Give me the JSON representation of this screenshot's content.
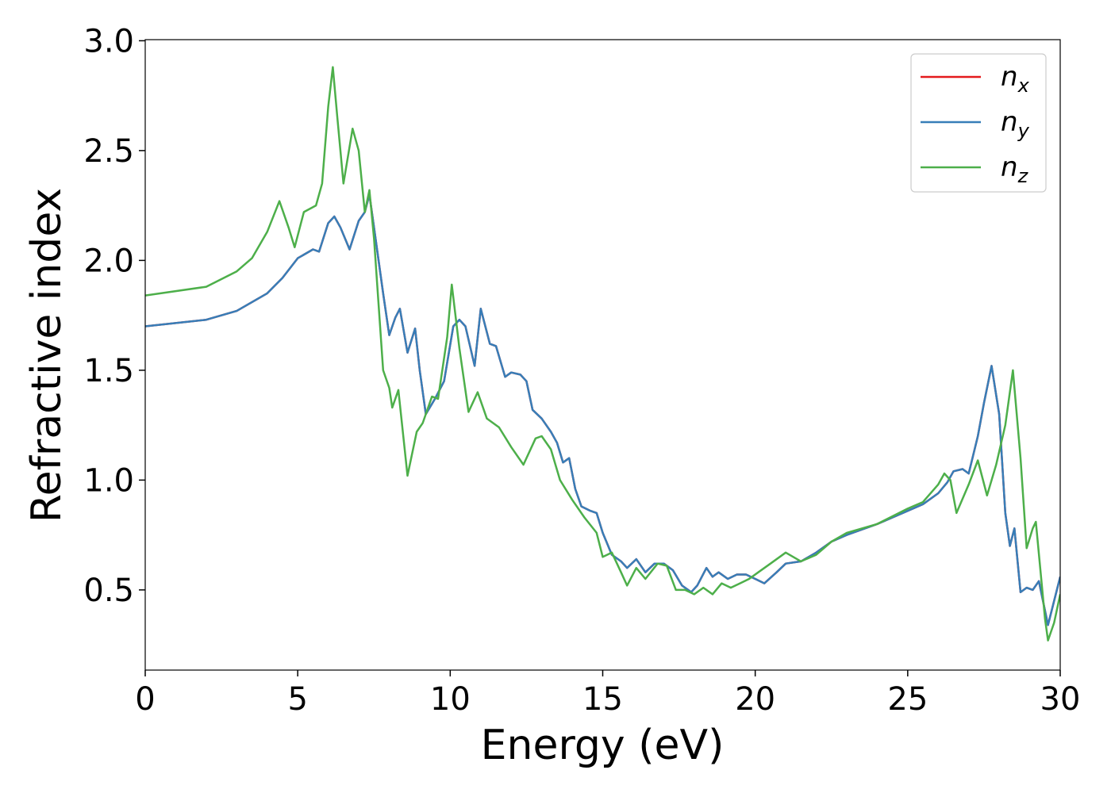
{
  "chart_data": {
    "type": "line",
    "xlabel": "Energy (eV)",
    "ylabel": "Refractive index",
    "xlim": [
      0,
      30
    ],
    "ylim": [
      0.135,
      3.005
    ],
    "xticks": [
      0,
      5,
      10,
      15,
      20,
      25,
      30
    ],
    "yticks": [
      0.5,
      {
        "value": 1.0,
        "label": "1.0"
      },
      1.5,
      {
        "value": 2.0,
        "label": "2.0"
      },
      2.5,
      {
        "value": 3.0,
        "label": "3.0"
      }
    ],
    "legend": "upper right",
    "series": [
      {
        "name": "nx",
        "color": "#e41a1c",
        "x": [
          0,
          2,
          3,
          4,
          4.5,
          5,
          5.5,
          5.7,
          6,
          6.2,
          6.4,
          6.7,
          7,
          7.2,
          7.35,
          7.5,
          7.8,
          8,
          8.2,
          8.35,
          8.6,
          8.85,
          9,
          9.2,
          9.5,
          9.8,
          10.1,
          10.3,
          10.5,
          10.8,
          11,
          11.3,
          11.5,
          11.8,
          12,
          12.3,
          12.5,
          12.7,
          13,
          13.3,
          13.5,
          13.7,
          13.9,
          14.1,
          14.3,
          14.6,
          14.8,
          15,
          15.3,
          15.6,
          15.8,
          16.1,
          16.4,
          16.7,
          17,
          17.3,
          17.6,
          17.9,
          18.1,
          18.4,
          18.6,
          18.8,
          19.1,
          19.4,
          19.7,
          20,
          20.3,
          20.7,
          21,
          21.5,
          22,
          22.5,
          23,
          24,
          25,
          25.5,
          26,
          26.3,
          26.5,
          26.8,
          27,
          27.3,
          27.5,
          27.75,
          28,
          28.2,
          28.35,
          28.5,
          28.7,
          28.9,
          29.1,
          29.3,
          29.6,
          30
        ],
        "values": [
          1.7,
          1.73,
          1.77,
          1.85,
          1.92,
          2.01,
          2.05,
          2.04,
          2.17,
          2.2,
          2.15,
          2.05,
          2.18,
          2.22,
          2.3,
          2.15,
          1.85,
          1.66,
          1.74,
          1.78,
          1.58,
          1.69,
          1.5,
          1.3,
          1.37,
          1.45,
          1.7,
          1.73,
          1.7,
          1.52,
          1.78,
          1.62,
          1.61,
          1.47,
          1.49,
          1.48,
          1.45,
          1.32,
          1.28,
          1.22,
          1.17,
          1.08,
          1.1,
          0.96,
          0.88,
          0.86,
          0.85,
          0.76,
          0.66,
          0.63,
          0.6,
          0.64,
          0.58,
          0.62,
          0.62,
          0.59,
          0.52,
          0.49,
          0.52,
          0.6,
          0.56,
          0.58,
          0.55,
          0.57,
          0.57,
          0.55,
          0.53,
          0.58,
          0.62,
          0.63,
          0.67,
          0.72,
          0.75,
          0.8,
          0.86,
          0.89,
          0.94,
          0.99,
          1.04,
          1.05,
          1.03,
          1.2,
          1.35,
          1.52,
          1.3,
          0.85,
          0.7,
          0.78,
          0.49,
          0.51,
          0.5,
          0.54,
          0.34,
          0.56
        ]
      },
      {
        "name": "ny",
        "color": "#377eb8",
        "x": [
          0,
          2,
          3,
          4,
          4.5,
          5,
          5.5,
          5.7,
          6,
          6.2,
          6.4,
          6.7,
          7,
          7.2,
          7.35,
          7.5,
          7.8,
          8,
          8.2,
          8.35,
          8.6,
          8.85,
          9,
          9.2,
          9.5,
          9.8,
          10.1,
          10.3,
          10.5,
          10.8,
          11,
          11.3,
          11.5,
          11.8,
          12,
          12.3,
          12.5,
          12.7,
          13,
          13.3,
          13.5,
          13.7,
          13.9,
          14.1,
          14.3,
          14.6,
          14.8,
          15,
          15.3,
          15.6,
          15.8,
          16.1,
          16.4,
          16.7,
          17,
          17.3,
          17.6,
          17.9,
          18.1,
          18.4,
          18.6,
          18.8,
          19.1,
          19.4,
          19.7,
          20,
          20.3,
          20.7,
          21,
          21.5,
          22,
          22.5,
          23,
          24,
          25,
          25.5,
          26,
          26.3,
          26.5,
          26.8,
          27,
          27.3,
          27.5,
          27.75,
          28,
          28.2,
          28.35,
          28.5,
          28.7,
          28.9,
          29.1,
          29.3,
          29.6,
          30
        ],
        "values": [
          1.7,
          1.73,
          1.77,
          1.85,
          1.92,
          2.01,
          2.05,
          2.04,
          2.17,
          2.2,
          2.15,
          2.05,
          2.18,
          2.22,
          2.3,
          2.15,
          1.85,
          1.66,
          1.74,
          1.78,
          1.58,
          1.69,
          1.5,
          1.3,
          1.37,
          1.45,
          1.7,
          1.73,
          1.7,
          1.52,
          1.78,
          1.62,
          1.61,
          1.47,
          1.49,
          1.48,
          1.45,
          1.32,
          1.28,
          1.22,
          1.17,
          1.08,
          1.1,
          0.96,
          0.88,
          0.86,
          0.85,
          0.76,
          0.66,
          0.63,
          0.6,
          0.64,
          0.58,
          0.62,
          0.62,
          0.59,
          0.52,
          0.49,
          0.52,
          0.6,
          0.56,
          0.58,
          0.55,
          0.57,
          0.57,
          0.55,
          0.53,
          0.58,
          0.62,
          0.63,
          0.67,
          0.72,
          0.75,
          0.8,
          0.86,
          0.89,
          0.94,
          0.99,
          1.04,
          1.05,
          1.03,
          1.2,
          1.35,
          1.52,
          1.3,
          0.85,
          0.7,
          0.78,
          0.49,
          0.51,
          0.5,
          0.54,
          0.34,
          0.56
        ]
      },
      {
        "name": "nz",
        "color": "#4daf4a",
        "x": [
          0,
          2,
          3,
          3.5,
          4,
          4.4,
          4.7,
          4.9,
          5.2,
          5.6,
          5.8,
          6,
          6.15,
          6.3,
          6.5,
          6.8,
          7,
          7.2,
          7.35,
          7.5,
          7.8,
          8,
          8.1,
          8.3,
          8.6,
          8.9,
          9.1,
          9.4,
          9.6,
          9.9,
          10.05,
          10.3,
          10.6,
          10.9,
          11.2,
          11.6,
          12,
          12.4,
          12.8,
          13,
          13.3,
          13.6,
          14,
          14.4,
          14.8,
          15,
          15.3,
          15.6,
          15.8,
          16.1,
          16.4,
          16.8,
          17.1,
          17.4,
          17.7,
          18,
          18.3,
          18.6,
          18.9,
          19.2,
          19.5,
          19.8,
          20.1,
          20.5,
          21,
          21.5,
          22,
          22.5,
          23,
          24,
          25,
          25.5,
          26,
          26.2,
          26.4,
          26.6,
          27,
          27.3,
          27.6,
          27.9,
          28.2,
          28.45,
          28.7,
          28.9,
          29.1,
          29.2,
          29.5,
          29.6,
          29.8,
          30
        ],
        "values": [
          1.84,
          1.88,
          1.95,
          2.01,
          2.13,
          2.27,
          2.15,
          2.06,
          2.22,
          2.25,
          2.35,
          2.7,
          2.88,
          2.65,
          2.35,
          2.6,
          2.5,
          2.22,
          2.32,
          2.1,
          1.5,
          1.42,
          1.33,
          1.41,
          1.02,
          1.22,
          1.26,
          1.38,
          1.37,
          1.65,
          1.89,
          1.6,
          1.31,
          1.4,
          1.28,
          1.24,
          1.15,
          1.07,
          1.19,
          1.2,
          1.14,
          1.0,
          0.91,
          0.83,
          0.76,
          0.65,
          0.67,
          0.58,
          0.52,
          0.6,
          0.55,
          0.62,
          0.61,
          0.5,
          0.5,
          0.48,
          0.51,
          0.48,
          0.53,
          0.51,
          0.53,
          0.55,
          0.58,
          0.62,
          0.67,
          0.63,
          0.66,
          0.72,
          0.76,
          0.8,
          0.87,
          0.9,
          0.98,
          1.03,
          1.0,
          0.85,
          0.98,
          1.09,
          0.93,
          1.07,
          1.25,
          1.5,
          1.1,
          0.69,
          0.78,
          0.81,
          0.37,
          0.27,
          0.35,
          0.48
        ]
      }
    ]
  }
}
